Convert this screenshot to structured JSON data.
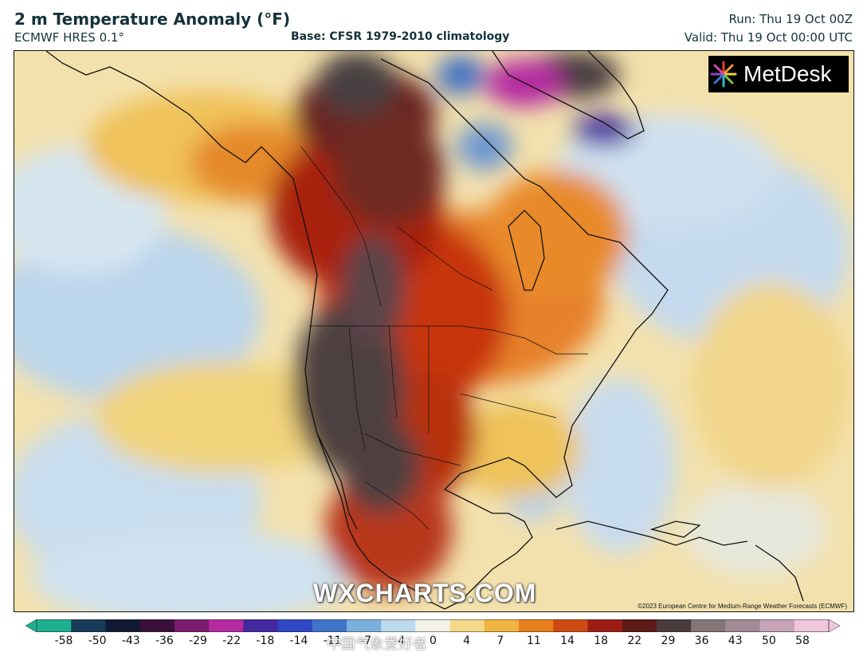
{
  "header": {
    "title": "2 m Temperature Anomaly (°F)",
    "model": "ECMWF HRES 0.1°",
    "base": "Base: CFSR 1979-2010 climatology",
    "run": "Run: Thu 19 Oct 00Z",
    "valid": "Valid: Thu 19 Oct 00:00 UTC"
  },
  "map": {
    "logo_text": "MetDesk",
    "watermark": "WXCHARTS.COM",
    "copyright": "©2023 European Centre for Medium-Range Weather Forecasts (ECMWF)"
  },
  "colorbar": {
    "ticks": [
      "-58",
      "-50",
      "-43",
      "-36",
      "-29",
      "-22",
      "-18",
      "-14",
      "-11",
      "-7",
      "-4",
      "0",
      "4",
      "7",
      "11",
      "14",
      "18",
      "22",
      "29",
      "36",
      "43",
      "50",
      "58"
    ],
    "colors": [
      "#1db08f",
      "#153c58",
      "#101a35",
      "#3a0f3c",
      "#7a1c6e",
      "#b52aa0",
      "#4428a0",
      "#2f47c5",
      "#3f74c9",
      "#7ab0dc",
      "#bcd9ee",
      "#f3f2e6",
      "#f4d98a",
      "#f0b440",
      "#e77f1c",
      "#cf4a13",
      "#9e1d12",
      "#5e1a17",
      "#4a3c3d",
      "#857478",
      "#a48a94",
      "#c7a3b7",
      "#f0c6dc"
    ],
    "watermark2": "中国气象爱好者"
  },
  "legend_colors": {
    "ocean_neutral": "#f4e4b4",
    "cool": "#c9dcee",
    "warm": "#e8a43a",
    "hot": "#b82c10",
    "very_hot": "#5a2420",
    "extreme": "#4a4244"
  }
}
